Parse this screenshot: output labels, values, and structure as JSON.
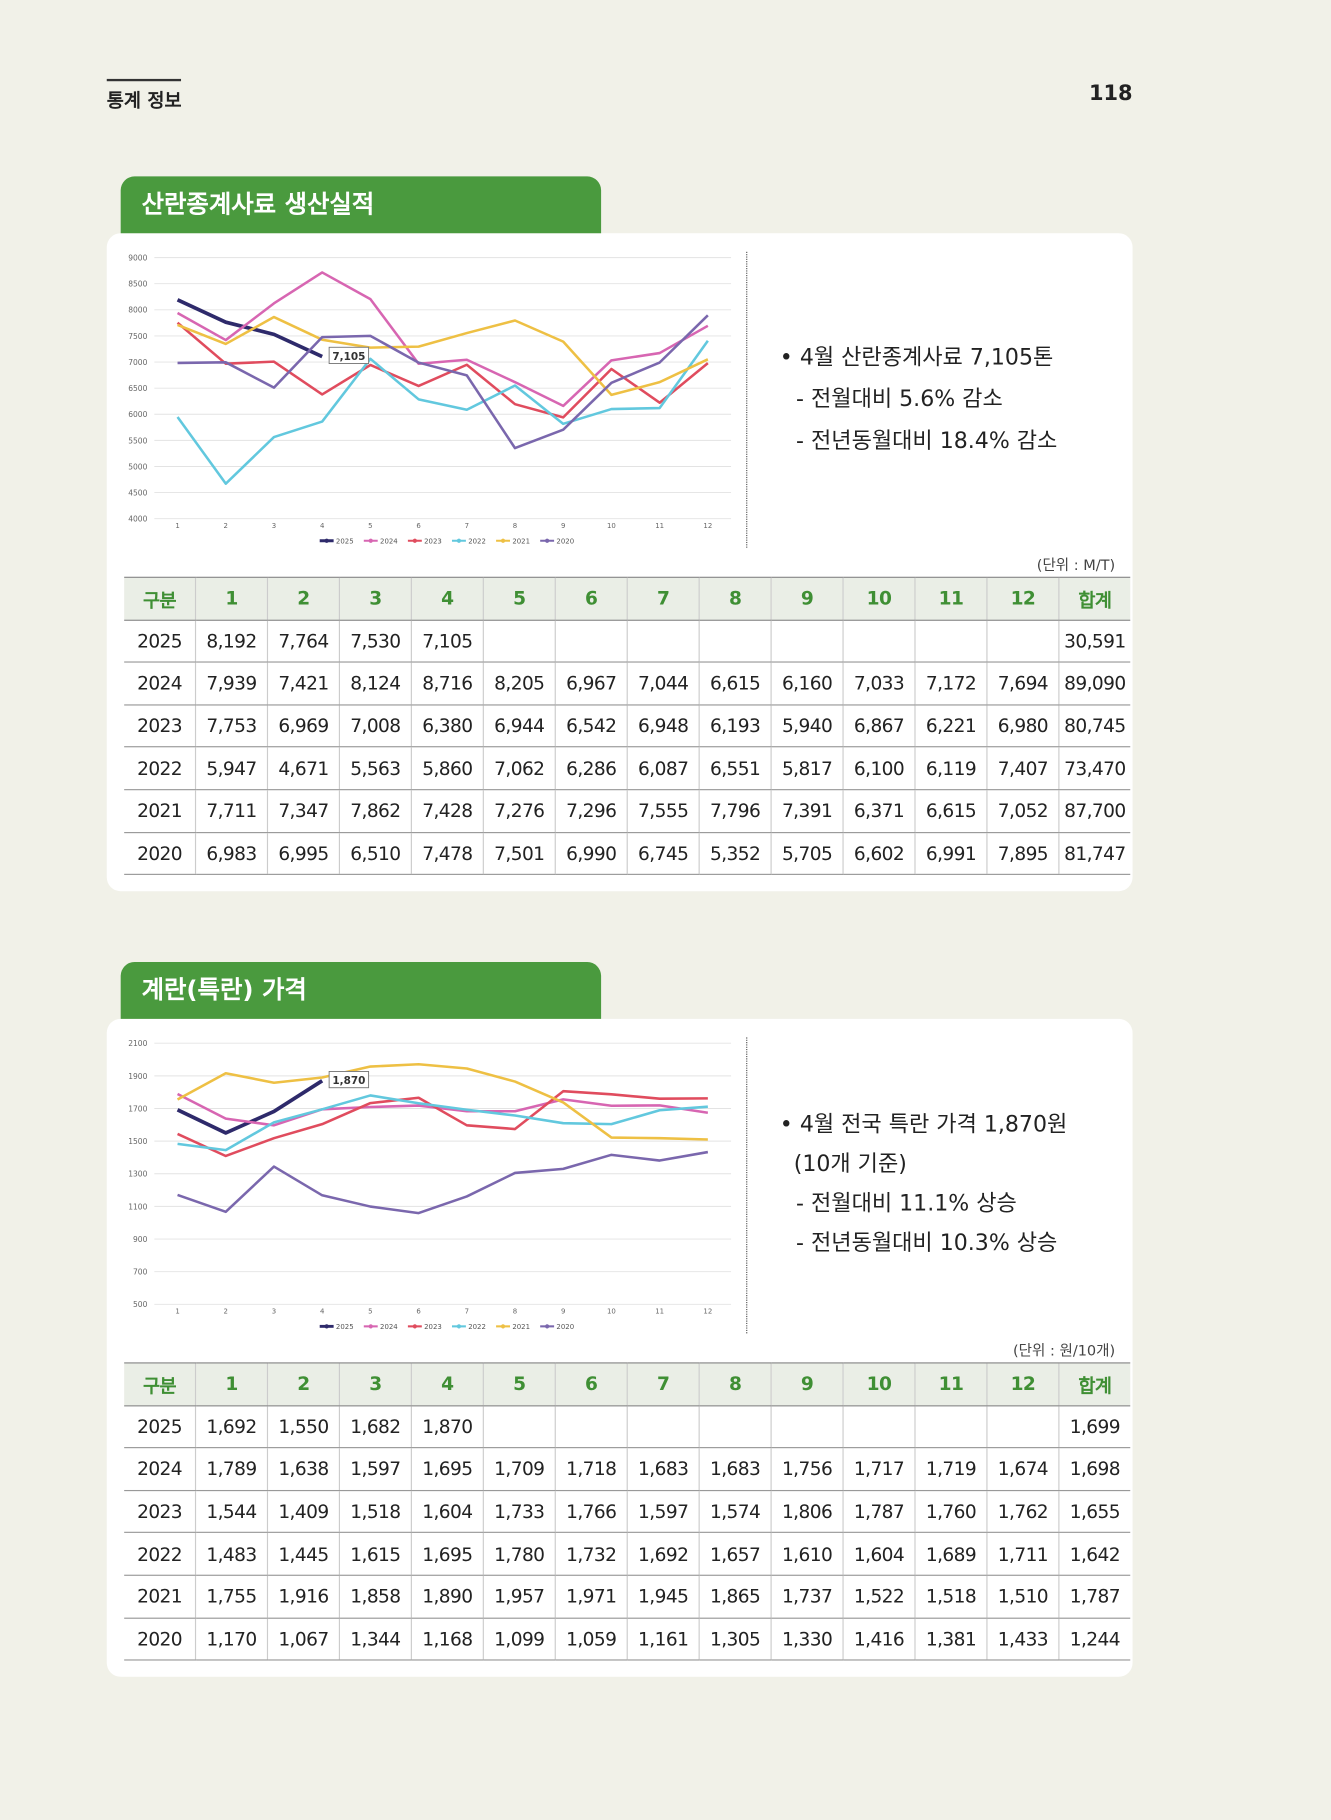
{
  "header": {
    "section": "통계 정보",
    "page": "118"
  },
  "sections": [
    {
      "title": "산란종계사료 생산실적",
      "notes": [
        "• 4월 산란종계사료 7,105톤",
        "- 전월대비 5.6% 감소",
        "- 전년동월대비 18.4% 감소"
      ],
      "unit": "(단위 : M/T)",
      "table": {
        "header": [
          "구분",
          "1",
          "2",
          "3",
          "4",
          "5",
          "6",
          "7",
          "8",
          "9",
          "10",
          "11",
          "12",
          "합계"
        ],
        "rows": [
          [
            "2025",
            "8,192",
            "7,764",
            "7,530",
            "7,105",
            null,
            null,
            null,
            null,
            null,
            null,
            null,
            null,
            "30,591"
          ],
          [
            "2024",
            "7,939",
            "7,421",
            "8,124",
            "8,716",
            "8,205",
            "6,967",
            "7,044",
            "6,615",
            "6,160",
            "7,033",
            "7,172",
            "7,694",
            "89,090"
          ],
          [
            "2023",
            "7,753",
            "6,969",
            "7,008",
            "6,380",
            "6,944",
            "6,542",
            "6,948",
            "6,193",
            "5,940",
            "6,867",
            "6,221",
            "6,980",
            "80,745"
          ],
          [
            "2022",
            "5,947",
            "4,671",
            "5,563",
            "5,860",
            "7,062",
            "6,286",
            "6,087",
            "6,551",
            "5,817",
            "6,100",
            "6,119",
            "7,407",
            "73,470"
          ],
          [
            "2021",
            "7,711",
            "7,347",
            "7,862",
            "7,428",
            "7,276",
            "7,296",
            "7,555",
            "7,796",
            "7,391",
            "6,371",
            "6,615",
            "7,052",
            "87,700"
          ],
          [
            "2020",
            "6,983",
            "6,995",
            "6,510",
            "7,478",
            "7,501",
            "6,990",
            "6,745",
            "5,352",
            "5,705",
            "6,602",
            "6,991",
            "7,895",
            "81,747"
          ]
        ]
      }
    },
    {
      "title": "계란(특란) 가격",
      "notes": [
        "• 4월 전국 특란 가격 1,870원",
        "(10개 기준)",
        "- 전월대비 11.1% 상승",
        "- 전년동월대비 10.3% 상승"
      ],
      "unit": "(단위 : 원/10개)",
      "table": {
        "header": [
          "구분",
          "1",
          "2",
          "3",
          "4",
          "5",
          "6",
          "7",
          "8",
          "9",
          "10",
          "11",
          "12",
          "합계"
        ],
        "rows": [
          [
            "2025",
            "1,692",
            "1,550",
            "1,682",
            "1,870",
            null,
            null,
            null,
            null,
            null,
            null,
            null,
            null,
            "1,699"
          ],
          [
            "2024",
            "1,789",
            "1,638",
            "1,597",
            "1,695",
            "1,709",
            "1,718",
            "1,683",
            "1,683",
            "1,756",
            "1,717",
            "1,719",
            "1,674",
            "1,698"
          ],
          [
            "2023",
            "1,544",
            "1,409",
            "1,518",
            "1,604",
            "1,733",
            "1,766",
            "1,597",
            "1,574",
            "1,806",
            "1,787",
            "1,760",
            "1,762",
            "1,655"
          ],
          [
            "2022",
            "1,483",
            "1,445",
            "1,615",
            "1,695",
            "1,780",
            "1,732",
            "1,692",
            "1,657",
            "1,610",
            "1,604",
            "1,689",
            "1,711",
            "1,642"
          ],
          [
            "2021",
            "1,755",
            "1,916",
            "1,858",
            "1,890",
            "1,957",
            "1,971",
            "1,945",
            "1,865",
            "1,737",
            "1,522",
            "1,518",
            "1,510",
            "1,787"
          ],
          [
            "2020",
            "1,170",
            "1,067",
            "1,344",
            "1,168",
            "1,099",
            "1,059",
            "1,161",
            "1,305",
            "1,330",
            "1,416",
            "1,381",
            "1,433",
            "1,244"
          ]
        ]
      }
    }
  ],
  "chart_data": [
    {
      "type": "line",
      "categories": [
        "1",
        "2",
        "3",
        "4",
        "5",
        "6",
        "7",
        "8",
        "9",
        "10",
        "11",
        "12"
      ],
      "ylim": [
        4000,
        9000
      ],
      "yticks": [
        4000,
        4500,
        5000,
        5500,
        6000,
        6500,
        7000,
        7500,
        8000,
        8500,
        9000
      ],
      "grid": true,
      "annotation": "7,105",
      "series": [
        {
          "name": "2025",
          "color": "#2e2a6b",
          "values": [
            8192,
            7764,
            7530,
            7105,
            null,
            null,
            null,
            null,
            null,
            null,
            null,
            null
          ]
        },
        {
          "name": "2024",
          "color": "#d766b2",
          "values": [
            7939,
            7421,
            8124,
            8716,
            8205,
            6967,
            7044,
            6615,
            6160,
            7033,
            7172,
            7694
          ]
        },
        {
          "name": "2023",
          "color": "#e04c5e",
          "values": [
            7753,
            6969,
            7008,
            6380,
            6944,
            6542,
            6948,
            6193,
            5940,
            6867,
            6221,
            6980
          ]
        },
        {
          "name": "2022",
          "color": "#62c8de",
          "values": [
            5947,
            4671,
            5563,
            5860,
            7062,
            6286,
            6087,
            6551,
            5817,
            6100,
            6119,
            7407
          ]
        },
        {
          "name": "2021",
          "color": "#eec044",
          "values": [
            7711,
            7347,
            7862,
            7428,
            7276,
            7296,
            7555,
            7796,
            7391,
            6371,
            6615,
            7052
          ]
        },
        {
          "name": "2020",
          "color": "#7a67ad",
          "values": [
            6983,
            6995,
            6510,
            7478,
            7501,
            6990,
            6745,
            5352,
            5705,
            6602,
            6991,
            7895
          ]
        }
      ]
    },
    {
      "type": "line",
      "categories": [
        "1",
        "2",
        "3",
        "4",
        "5",
        "6",
        "7",
        "8",
        "9",
        "10",
        "11",
        "12"
      ],
      "ylim": [
        500,
        2100
      ],
      "yticks": [
        500,
        700,
        900,
        1100,
        1300,
        1500,
        1700,
        1900,
        2100
      ],
      "grid": true,
      "annotation": "1,870",
      "series": [
        {
          "name": "2025",
          "color": "#2e2a6b",
          "values": [
            1692,
            1550,
            1682,
            1870,
            null,
            null,
            null,
            null,
            null,
            null,
            null,
            null
          ]
        },
        {
          "name": "2024",
          "color": "#d766b2",
          "values": [
            1789,
            1638,
            1597,
            1695,
            1709,
            1718,
            1683,
            1683,
            1756,
            1717,
            1719,
            1674
          ]
        },
        {
          "name": "2023",
          "color": "#e04c5e",
          "values": [
            1544,
            1409,
            1518,
            1604,
            1733,
            1766,
            1597,
            1574,
            1806,
            1787,
            1760,
            1762
          ]
        },
        {
          "name": "2022",
          "color": "#62c8de",
          "values": [
            1483,
            1445,
            1615,
            1695,
            1780,
            1732,
            1692,
            1657,
            1610,
            1604,
            1689,
            1711
          ]
        },
        {
          "name": "2021",
          "color": "#eec044",
          "values": [
            1755,
            1916,
            1858,
            1890,
            1957,
            1971,
            1945,
            1865,
            1737,
            1522,
            1518,
            1510
          ]
        },
        {
          "name": "2020",
          "color": "#7a67ad",
          "values": [
            1170,
            1067,
            1344,
            1168,
            1099,
            1059,
            1161,
            1305,
            1330,
            1416,
            1381,
            1433
          ]
        }
      ]
    }
  ]
}
